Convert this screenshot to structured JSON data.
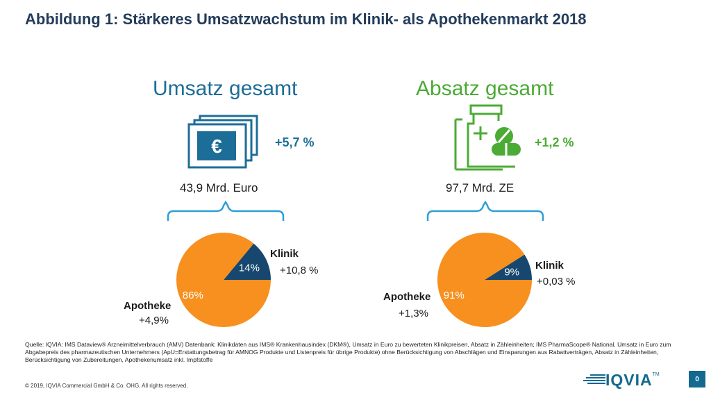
{
  "title": "Abbildung 1: Stärkeres Umsatzwachstum im Klinik- als Apothekenmarkt 2018",
  "colors": {
    "blue": "#1c6d97",
    "green": "#4bab35",
    "orange": "#f7901e",
    "navy": "#17476e",
    "brace": "#2f9ed8"
  },
  "icons": [
    "euro-banknotes-icon",
    "medicine-bottle-pills-icon",
    "curly-brace-icon",
    "iqvia-logo"
  ],
  "panels": [
    {
      "heading": "Umsatz gesamt",
      "change": "+5,7 %",
      "total": "43,9 Mrd. Euro"
    },
    {
      "heading": "Absatz gesamt",
      "change": "+1,2 %",
      "total": "97,7 Mrd. ZE"
    }
  ],
  "chart_data": [
    {
      "type": "pie",
      "categories": [
        "Klinik",
        "Apotheke"
      ],
      "values": [
        14,
        86
      ],
      "labels": [
        "14%",
        "86%"
      ],
      "growth": [
        "+10,8 %",
        "+4,9%"
      ]
    },
    {
      "type": "pie",
      "categories": [
        "Klinik",
        "Apotheke"
      ],
      "values": [
        9,
        91
      ],
      "labels": [
        "9%",
        "91%"
      ],
      "growth": [
        "+0,03 %",
        "+1,3%"
      ]
    }
  ],
  "source": {
    "text": "Quelle: IQVIA: IMS Dataview® Arzneimittelverbrauch (AMV) Datenbank: Klinikdaten aus IMS® Krankenhausindex (DKM®), Umsatz in Euro zu bewerteten Klinikpreisen, Absatz in Zähleinheiten; IMS PharmaScope® National, Umsatz in Euro zum Abgabepreis des pharmazeutischen Unternehmers (ApU=Erstattungsbetrag für AMNOG Produkte und Listenpreis für übrige Produkte) ohne Berücksichtigung von Abschlägen und Einsparungen aus Rabattverträgen, Absatz in Zähleinheiten, Berücksichtigung von Zubereitungen, Apothekenumsatz inkl. Impfstoffe"
  },
  "footer": {
    "copyright": "© 2019, IQVIA Commercial GmbH & Co. OHG. All rights reserved.",
    "logo_text": "IQVIA",
    "trademark": "TM",
    "page_number": "0"
  }
}
